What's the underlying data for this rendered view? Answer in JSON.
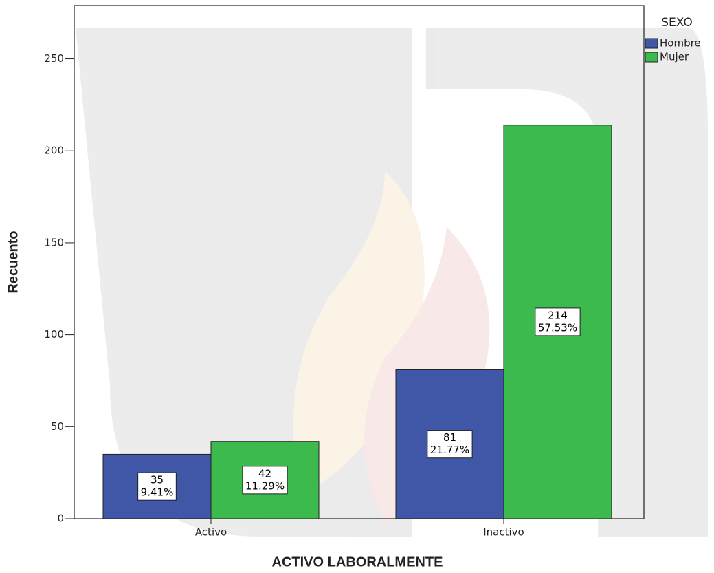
{
  "chart_data": {
    "type": "bar",
    "x_label": "ACTIVO LABORALMENTE",
    "y_label": "Recuento",
    "legend_title": "SEXO",
    "legend_position": "upper right",
    "categories": [
      "Activo",
      "Inactivo"
    ],
    "series": [
      {
        "name": "Hombre",
        "color": "#3f57a6",
        "values": [
          35,
          81
        ],
        "percent_labels": [
          "9.41%",
          "21.77%"
        ]
      },
      {
        "name": "Mujer",
        "color": "#3cba4e",
        "values": [
          42,
          214
        ],
        "percent_labels": [
          "11.29%",
          "57.53%"
        ]
      }
    ],
    "ylim": [
      0,
      279
    ],
    "yticks": [
      0,
      50,
      100,
      150,
      200,
      250
    ]
  }
}
